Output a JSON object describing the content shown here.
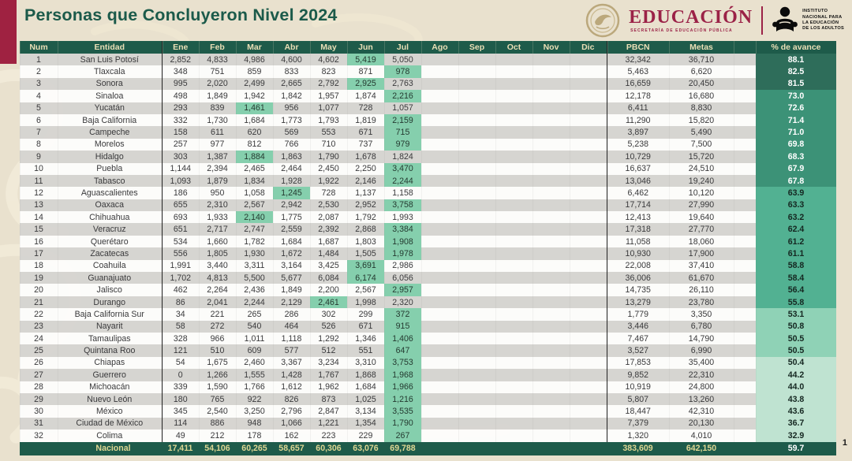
{
  "title": "Personas que Concluyeron Nivel 2024",
  "logos": {
    "sep": {
      "name": "EDUCACIÓN",
      "subtitle": "SECRETARÍA DE EDUCACIÓN PÚBLICA"
    },
    "inea": {
      "lines": [
        "INSTITUTO",
        "NACIONAL PARA",
        "LA EDUCACIÓN",
        "DE LOS ADULTOS"
      ]
    }
  },
  "page_number": "1",
  "colors": {
    "accent_maroon": "#9f2241",
    "header_green": "#1e5b4a",
    "title_green": "#1b5a4a",
    "highlight_mint": "#85cfad",
    "highlight_text": "#243a30",
    "stripe_gray": "#d5d4d1",
    "stripe_white": "#fdfdfc",
    "avance_bands": [
      {
        "min": 80,
        "bg": "#2e6d5a",
        "fg": "#ffffff"
      },
      {
        "min": 65,
        "bg": "#3c9277",
        "fg": "#ffffff"
      },
      {
        "min": 55,
        "bg": "#52b192",
        "fg": "#152721"
      },
      {
        "min": 50.5,
        "bg": "#8fd2b6",
        "fg": "#152721"
      },
      {
        "min": 0,
        "bg": "#bfe3d1",
        "fg": "#152721"
      }
    ]
  },
  "table": {
    "columns": [
      "Num",
      "Entidad",
      "Ene",
      "Feb",
      "Mar",
      "Abr",
      "May",
      "Jun",
      "Jul",
      "Ago",
      "Sep",
      "Oct",
      "Nov",
      "Dic",
      "PBCN",
      "Metas",
      "% de avance"
    ],
    "rows": [
      {
        "num": "1",
        "entidad": "San Luis Potosí",
        "months": [
          "2,852",
          "4,833",
          "4,986",
          "4,600",
          "4,602",
          "5,419",
          "5,050"
        ],
        "pbcn": "32,342",
        "metas": "36,710",
        "avance": "88.1"
      },
      {
        "num": "2",
        "entidad": "Tlaxcala",
        "months": [
          "348",
          "751",
          "859",
          "833",
          "823",
          "871",
          "978"
        ],
        "pbcn": "5,463",
        "metas": "6,620",
        "avance": "82.5"
      },
      {
        "num": "3",
        "entidad": "Sonora",
        "months": [
          "995",
          "2,020",
          "2,499",
          "2,665",
          "2,792",
          "2,925",
          "2,763"
        ],
        "pbcn": "16,659",
        "metas": "20,450",
        "avance": "81.5"
      },
      {
        "num": "4",
        "entidad": "Sinaloa",
        "months": [
          "498",
          "1,849",
          "1,942",
          "1,842",
          "1,957",
          "1,874",
          "2,216"
        ],
        "pbcn": "12,178",
        "metas": "16,680",
        "avance": "73.0"
      },
      {
        "num": "5",
        "entidad": "Yucatán",
        "months": [
          "293",
          "839",
          "1,461",
          "956",
          "1,077",
          "728",
          "1,057"
        ],
        "pbcn": "6,411",
        "metas": "8,830",
        "avance": "72.6"
      },
      {
        "num": "6",
        "entidad": "Baja California",
        "months": [
          "332",
          "1,730",
          "1,684",
          "1,773",
          "1,793",
          "1,819",
          "2,159"
        ],
        "pbcn": "11,290",
        "metas": "15,820",
        "avance": "71.4"
      },
      {
        "num": "7",
        "entidad": "Campeche",
        "months": [
          "158",
          "611",
          "620",
          "569",
          "553",
          "671",
          "715"
        ],
        "pbcn": "3,897",
        "metas": "5,490",
        "avance": "71.0"
      },
      {
        "num": "8",
        "entidad": "Morelos",
        "months": [
          "257",
          "977",
          "812",
          "766",
          "710",
          "737",
          "979"
        ],
        "pbcn": "5,238",
        "metas": "7,500",
        "avance": "69.8"
      },
      {
        "num": "9",
        "entidad": "Hidalgo",
        "months": [
          "303",
          "1,387",
          "1,884",
          "1,863",
          "1,790",
          "1,678",
          "1,824"
        ],
        "pbcn": "10,729",
        "metas": "15,720",
        "avance": "68.3"
      },
      {
        "num": "10",
        "entidad": "Puebla",
        "months": [
          "1,144",
          "2,394",
          "2,465",
          "2,464",
          "2,450",
          "2,250",
          "3,470"
        ],
        "pbcn": "16,637",
        "metas": "24,510",
        "avance": "67.9"
      },
      {
        "num": "11",
        "entidad": "Tabasco",
        "months": [
          "1,093",
          "1,879",
          "1,834",
          "1,928",
          "1,922",
          "2,146",
          "2,244"
        ],
        "pbcn": "13,046",
        "metas": "19,240",
        "avance": "67.8"
      },
      {
        "num": "12",
        "entidad": "Aguascalientes",
        "months": [
          "186",
          "950",
          "1,058",
          "1,245",
          "728",
          "1,137",
          "1,158"
        ],
        "pbcn": "6,462",
        "metas": "10,120",
        "avance": "63.9"
      },
      {
        "num": "13",
        "entidad": "Oaxaca",
        "months": [
          "655",
          "2,310",
          "2,567",
          "2,942",
          "2,530",
          "2,952",
          "3,758"
        ],
        "pbcn": "17,714",
        "metas": "27,990",
        "avance": "63.3"
      },
      {
        "num": "14",
        "entidad": "Chihuahua",
        "months": [
          "693",
          "1,933",
          "2,140",
          "1,775",
          "2,087",
          "1,792",
          "1,993"
        ],
        "pbcn": "12,413",
        "metas": "19,640",
        "avance": "63.2"
      },
      {
        "num": "15",
        "entidad": "Veracruz",
        "months": [
          "651",
          "2,717",
          "2,747",
          "2,559",
          "2,392",
          "2,868",
          "3,384"
        ],
        "pbcn": "17,318",
        "metas": "27,770",
        "avance": "62.4"
      },
      {
        "num": "16",
        "entidad": "Querétaro",
        "months": [
          "534",
          "1,660",
          "1,782",
          "1,684",
          "1,687",
          "1,803",
          "1,908"
        ],
        "pbcn": "11,058",
        "metas": "18,060",
        "avance": "61.2"
      },
      {
        "num": "17",
        "entidad": "Zacatecas",
        "months": [
          "556",
          "1,805",
          "1,930",
          "1,672",
          "1,484",
          "1,505",
          "1,978"
        ],
        "pbcn": "10,930",
        "metas": "17,900",
        "avance": "61.1"
      },
      {
        "num": "18",
        "entidad": "Coahuila",
        "months": [
          "1,991",
          "3,440",
          "3,311",
          "3,164",
          "3,425",
          "3,691",
          "2,986"
        ],
        "pbcn": "22,008",
        "metas": "37,410",
        "avance": "58.8"
      },
      {
        "num": "19",
        "entidad": "Guanajuato",
        "months": [
          "1,702",
          "4,813",
          "5,500",
          "5,677",
          "6,084",
          "6,174",
          "6,056"
        ],
        "pbcn": "36,006",
        "metas": "61,670",
        "avance": "58.4"
      },
      {
        "num": "20",
        "entidad": "Jalisco",
        "months": [
          "462",
          "2,264",
          "2,436",
          "1,849",
          "2,200",
          "2,567",
          "2,957"
        ],
        "pbcn": "14,735",
        "metas": "26,110",
        "avance": "56.4"
      },
      {
        "num": "21",
        "entidad": "Durango",
        "months": [
          "86",
          "2,041",
          "2,244",
          "2,129",
          "2,461",
          "1,998",
          "2,320"
        ],
        "pbcn": "13,279",
        "metas": "23,780",
        "avance": "55.8"
      },
      {
        "num": "22",
        "entidad": "Baja California Sur",
        "months": [
          "34",
          "221",
          "265",
          "286",
          "302",
          "299",
          "372"
        ],
        "pbcn": "1,779",
        "metas": "3,350",
        "avance": "53.1"
      },
      {
        "num": "23",
        "entidad": "Nayarit",
        "months": [
          "58",
          "272",
          "540",
          "464",
          "526",
          "671",
          "915"
        ],
        "pbcn": "3,446",
        "metas": "6,780",
        "avance": "50.8"
      },
      {
        "num": "24",
        "entidad": "Tamaulipas",
        "months": [
          "328",
          "966",
          "1,011",
          "1,118",
          "1,292",
          "1,346",
          "1,406"
        ],
        "pbcn": "7,467",
        "metas": "14,790",
        "avance": "50.5"
      },
      {
        "num": "25",
        "entidad": "Quintana Roo",
        "months": [
          "121",
          "510",
          "609",
          "577",
          "512",
          "551",
          "647"
        ],
        "pbcn": "3,527",
        "metas": "6,990",
        "avance": "50.5"
      },
      {
        "num": "26",
        "entidad": "Chiapas",
        "months": [
          "54",
          "1,675",
          "2,460",
          "3,367",
          "3,234",
          "3,310",
          "3,753"
        ],
        "pbcn": "17,853",
        "metas": "35,400",
        "avance": "50.4"
      },
      {
        "num": "27",
        "entidad": "Guerrero",
        "months": [
          "0",
          "1,266",
          "1,555",
          "1,428",
          "1,767",
          "1,868",
          "1,968"
        ],
        "pbcn": "9,852",
        "metas": "22,310",
        "avance": "44.2"
      },
      {
        "num": "28",
        "entidad": "Michoacán",
        "months": [
          "339",
          "1,590",
          "1,766",
          "1,612",
          "1,962",
          "1,684",
          "1,966"
        ],
        "pbcn": "10,919",
        "metas": "24,800",
        "avance": "44.0"
      },
      {
        "num": "29",
        "entidad": "Nuevo León",
        "months": [
          "180",
          "765",
          "922",
          "826",
          "873",
          "1,025",
          "1,216"
        ],
        "pbcn": "5,807",
        "metas": "13,260",
        "avance": "43.8"
      },
      {
        "num": "30",
        "entidad": "México",
        "months": [
          "345",
          "2,540",
          "3,250",
          "2,796",
          "2,847",
          "3,134",
          "3,535"
        ],
        "pbcn": "18,447",
        "metas": "42,310",
        "avance": "43.6"
      },
      {
        "num": "31",
        "entidad": "Ciudad de México",
        "months": [
          "114",
          "886",
          "948",
          "1,066",
          "1,221",
          "1,354",
          "1,790"
        ],
        "pbcn": "7,379",
        "metas": "20,130",
        "avance": "36.7"
      },
      {
        "num": "32",
        "entidad": "Colima",
        "months": [
          "49",
          "212",
          "178",
          "162",
          "223",
          "229",
          "267"
        ],
        "pbcn": "1,320",
        "metas": "4,010",
        "avance": "32.9"
      }
    ],
    "total": {
      "label": "Nacional",
      "months": [
        "17,411",
        "54,106",
        "60,265",
        "58,657",
        "60,306",
        "63,076",
        "69,788"
      ],
      "pbcn": "383,609",
      "metas": "642,150",
      "avance": "59.7"
    }
  }
}
